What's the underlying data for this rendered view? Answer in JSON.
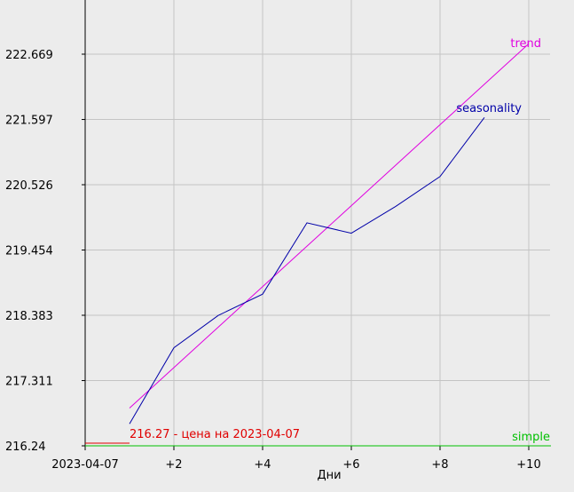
{
  "chart_data": {
    "type": "line",
    "xlabel": "Дни",
    "x_tick_labels": [
      "2023-04-07",
      "+2",
      "+4",
      "+6",
      "+8",
      "+10"
    ],
    "x_tick_values": [
      0,
      2,
      4,
      6,
      8,
      10
    ],
    "y_tick_labels": [
      "216.24",
      "217.311",
      "218.383",
      "219.454",
      "220.526",
      "221.597",
      "222.669"
    ],
    "ylim": [
      216.24,
      222.669
    ],
    "xlim": [
      0,
      10.5
    ],
    "grid": true,
    "series": [
      {
        "name": "trend",
        "color": "#e000e0",
        "points": [
          [
            1,
            216.86
          ],
          [
            10,
            222.84
          ]
        ]
      },
      {
        "name": "seasonality",
        "color": "#0000a8",
        "points": [
          [
            1,
            216.6
          ],
          [
            2,
            217.85
          ],
          [
            3,
            218.38
          ],
          [
            4,
            218.73
          ],
          [
            5,
            219.9
          ],
          [
            6,
            219.73
          ],
          [
            7,
            220.17
          ],
          [
            8,
            220.66
          ],
          [
            9,
            221.63
          ]
        ]
      },
      {
        "name": "simple",
        "color": "#00c000",
        "points": [
          [
            0,
            216.24
          ],
          [
            10.5,
            216.24
          ]
        ]
      }
    ],
    "annotation": {
      "text": "216.27 - цена на 2023-04-07",
      "color": "#e00000",
      "segment_x": [
        0,
        1
      ],
      "segment_y": 216.27
    }
  }
}
